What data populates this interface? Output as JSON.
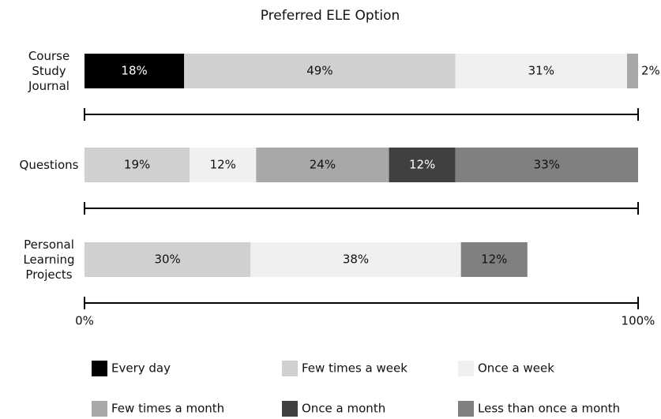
{
  "chart_data": {
    "type": "stacked_bar_horizontal",
    "title": "Preferred ELE Option",
    "categories": [
      "Course Study Journal",
      "Questions",
      "Personal Learning Projects"
    ],
    "series": [
      {
        "name": "Every day",
        "color": "#000000",
        "values": [
          18,
          null,
          null
        ],
        "value_labels": [
          "18%",
          null,
          null
        ]
      },
      {
        "name": "Few times a week",
        "color": "#d0d0d0",
        "values": [
          49,
          19,
          30
        ],
        "value_labels": [
          "49%",
          "19%",
          "30%"
        ]
      },
      {
        "name": "Once a week",
        "color": "#f0f0f0",
        "values": [
          31,
          12,
          38
        ],
        "value_labels": [
          "31%",
          "12%",
          "38%"
        ]
      },
      {
        "name": "Few times a month",
        "color": "#a8a8a8",
        "values": [
          2,
          24,
          null
        ],
        "value_labels": [
          "2%",
          "24%",
          null
        ]
      },
      {
        "name": "Once a month",
        "color": "#404040",
        "values": [
          null,
          12,
          null
        ],
        "value_labels": [
          null,
          "12%",
          null
        ]
      },
      {
        "name": "Less than once a month",
        "color": "#808080",
        "values": [
          null,
          33,
          12
        ],
        "value_labels": [
          null,
          "33%",
          "12%"
        ]
      }
    ],
    "xlim": [
      0,
      100
    ],
    "xticks": [
      {
        "value": 0,
        "label": "0%"
      },
      {
        "value": 100,
        "label": "100%"
      }
    ]
  }
}
